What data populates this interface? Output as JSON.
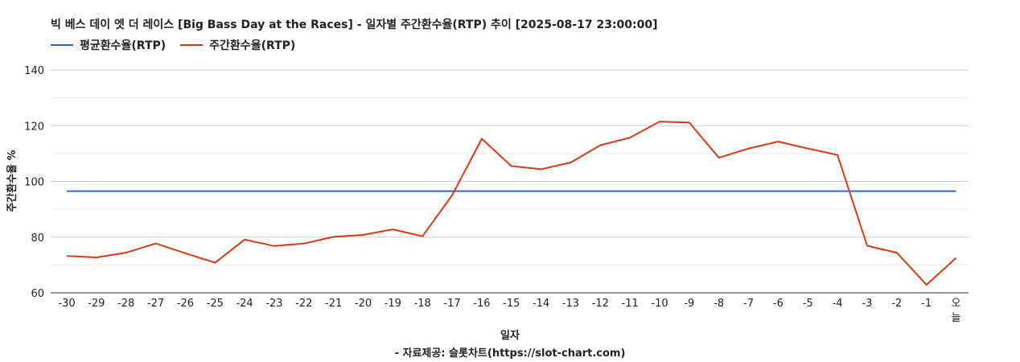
{
  "chart_data": {
    "type": "line",
    "title": "빅 베스 데이 엣 더 레이스 [Big Bass Day at the Races] - 일자별 주간환수율(RTP) 추이 [2025-08-17 23:00:00]",
    "xlabel": "일자",
    "ylabel": "주간환수율 %",
    "source": "- 자료제공: 슬롯차트(https://slot-chart.com)",
    "ylim": [
      60,
      140
    ],
    "yticks": [
      60,
      80,
      100,
      120,
      140
    ],
    "grid": true,
    "legend_position": "top-left",
    "categories": [
      "-30",
      "-29",
      "-28",
      "-27",
      "-26",
      "-25",
      "-24",
      "-23",
      "-22",
      "-21",
      "-20",
      "-19",
      "-18",
      "-17",
      "-16",
      "-15",
      "-14",
      "-13",
      "-12",
      "-11",
      "-10",
      "-9",
      "-8",
      "-7",
      "-6",
      "-5",
      "-4",
      "-3",
      "-2",
      "-1",
      "오늘"
    ],
    "series": [
      {
        "name": "평균환수율(RTP)",
        "color": "#3366cc",
        "values": [
          96.5,
          96.5,
          96.5,
          96.5,
          96.5,
          96.5,
          96.5,
          96.5,
          96.5,
          96.5,
          96.5,
          96.5,
          96.5,
          96.5,
          96.5,
          96.5,
          96.5,
          96.5,
          96.5,
          96.5,
          96.5,
          96.5,
          96.5,
          96.5,
          96.5,
          96.5,
          96.5,
          96.5,
          96.5,
          96.5,
          96.5
        ]
      },
      {
        "name": "주간환수율(RTP)",
        "color": "#dc3912",
        "values": [
          73.2,
          72.7,
          74.4,
          77.7,
          74.2,
          70.8,
          79.1,
          76.8,
          77.7,
          80.1,
          80.8,
          82.8,
          80.3,
          95.0,
          115.3,
          105.5,
          104.4,
          106.8,
          113.0,
          115.7,
          121.5,
          121.1,
          108.5,
          111.8,
          114.3,
          111.8,
          109.5,
          76.9,
          74.4,
          62.9,
          72.5
        ]
      }
    ]
  }
}
